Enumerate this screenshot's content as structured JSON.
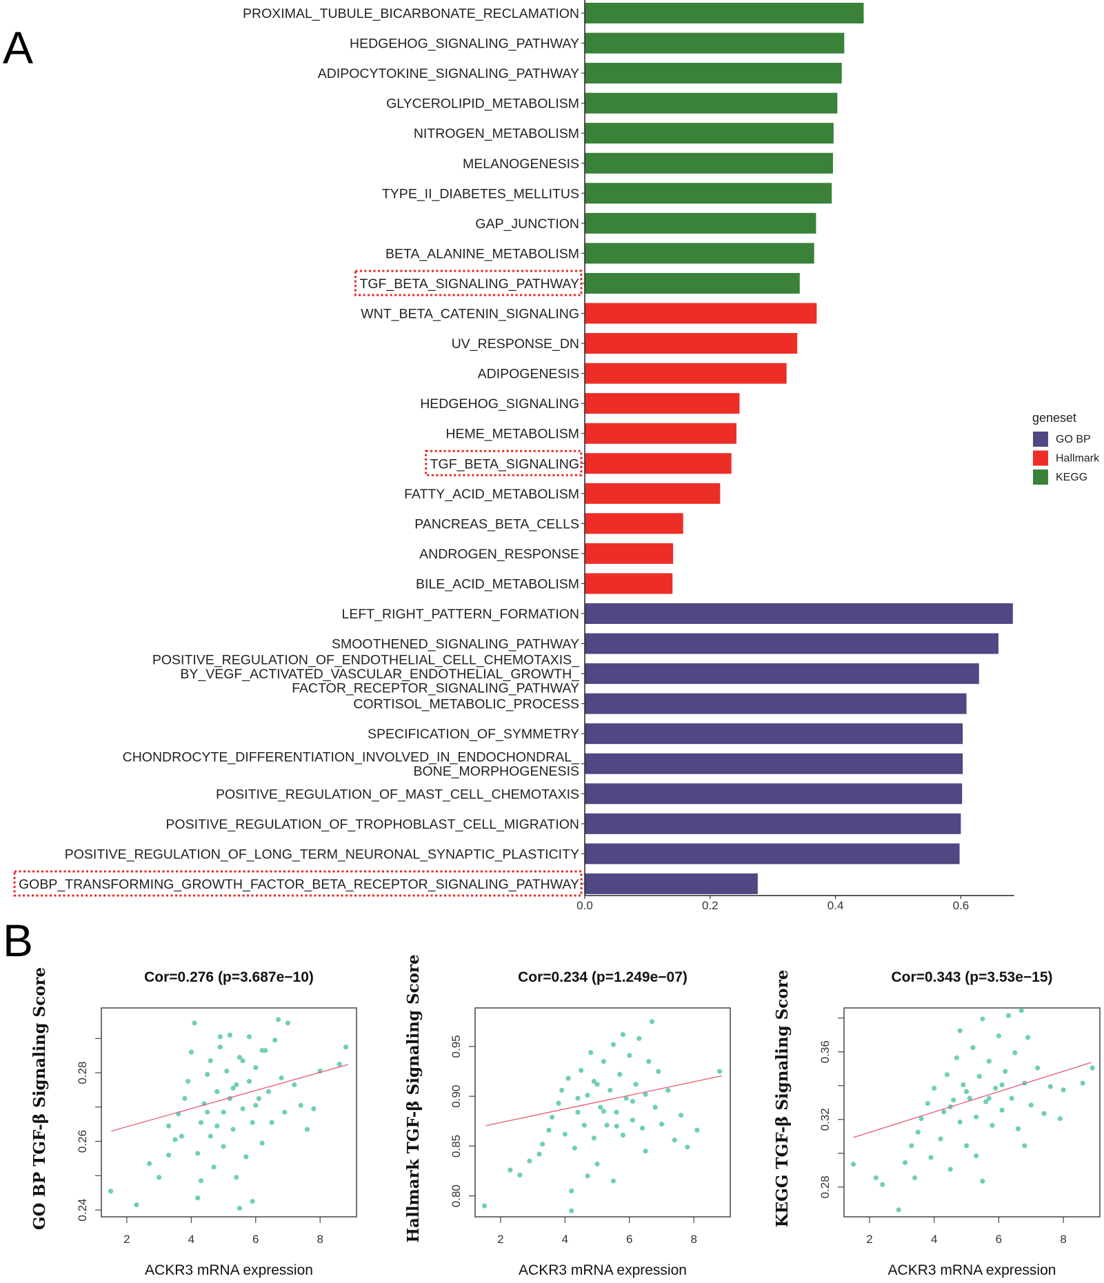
{
  "panels": {
    "a": "A",
    "b": "B"
  },
  "colors": {
    "GO BP": "#4f4882",
    "Hallmark": "#ec2e27",
    "KEGG": "#3a813a",
    "highlight": "#e8251f",
    "scatter": "#6fcfb6",
    "fit": "#e8647a"
  },
  "chart_data": [
    {
      "type": "bar",
      "orientation": "horizontal",
      "xlim": [
        0,
        0.685
      ],
      "xticks": [
        "0.0",
        "0.2",
        "0.4",
        "0.6"
      ],
      "xtick_values": [
        0,
        0.2,
        0.4,
        0.6
      ],
      "legend": {
        "title": "geneset",
        "position": "right",
        "entries": [
          "GO BP",
          "Hallmark",
          "KEGG"
        ]
      },
      "highlighted": [
        "TGF_BETA_SIGNALING_PATHWAY",
        "TGF_BETA_SIGNALING",
        "GOBP_TRANSFORMING_GROWTH_FACTOR_BETA_RECEPTOR_SIGNALING_PATHWAY"
      ],
      "bars": [
        {
          "label": [
            "PROXIMAL_TUBULE_BICARBONATE_RECLAMATION"
          ],
          "value": 0.445,
          "geneset": "KEGG"
        },
        {
          "label": [
            "HEDGEHOG_SIGNALING_PATHWAY"
          ],
          "value": 0.414,
          "geneset": "KEGG"
        },
        {
          "label": [
            "ADIPOCYTOKINE_SIGNALING_PATHWAY"
          ],
          "value": 0.41,
          "geneset": "KEGG"
        },
        {
          "label": [
            "GLYCEROLIPID_METABOLISM"
          ],
          "value": 0.403,
          "geneset": "KEGG"
        },
        {
          "label": [
            "NITROGEN_METABOLISM"
          ],
          "value": 0.397,
          "geneset": "KEGG"
        },
        {
          "label": [
            "MELANOGENESIS"
          ],
          "value": 0.396,
          "geneset": "KEGG"
        },
        {
          "label": [
            "TYPE_II_DIABETES_MELLITUS"
          ],
          "value": 0.394,
          "geneset": "KEGG"
        },
        {
          "label": [
            "GAP_JUNCTION"
          ],
          "value": 0.369,
          "geneset": "KEGG"
        },
        {
          "label": [
            "BETA_ALANINE_METABOLISM"
          ],
          "value": 0.366,
          "geneset": "KEGG"
        },
        {
          "label": [
            "TGF_BETA_SIGNALING_PATHWAY"
          ],
          "value": 0.343,
          "geneset": "KEGG",
          "highlight": true
        },
        {
          "label": [
            "WNT_BETA_CATENIN_SIGNALING"
          ],
          "value": 0.37,
          "geneset": "Hallmark"
        },
        {
          "label": [
            "UV_RESPONSE_DN"
          ],
          "value": 0.339,
          "geneset": "Hallmark"
        },
        {
          "label": [
            "ADIPOGENESIS"
          ],
          "value": 0.322,
          "geneset": "Hallmark"
        },
        {
          "label": [
            "HEDGEHOG_SIGNALING"
          ],
          "value": 0.247,
          "geneset": "Hallmark"
        },
        {
          "label": [
            "HEME_METABOLISM"
          ],
          "value": 0.242,
          "geneset": "Hallmark"
        },
        {
          "label": [
            "TGF_BETA_SIGNALING"
          ],
          "value": 0.234,
          "geneset": "Hallmark",
          "highlight": true
        },
        {
          "label": [
            "FATTY_ACID_METABOLISM"
          ],
          "value": 0.216,
          "geneset": "Hallmark"
        },
        {
          "label": [
            "PANCREAS_BETA_CELLS"
          ],
          "value": 0.157,
          "geneset": "Hallmark"
        },
        {
          "label": [
            "ANDROGEN_RESPONSE"
          ],
          "value": 0.141,
          "geneset": "Hallmark"
        },
        {
          "label": [
            "BILE_ACID_METABOLISM"
          ],
          "value": 0.14,
          "geneset": "Hallmark"
        },
        {
          "label": [
            "LEFT_RIGHT_PATTERN_FORMATION"
          ],
          "value": 0.683,
          "geneset": "GO BP"
        },
        {
          "label": [
            "SMOOTHENED_SIGNALING_PATHWAY"
          ],
          "value": 0.66,
          "geneset": "GO BP"
        },
        {
          "label": [
            "POSITIVE_REGULATION_OF_ENDOTHELIAL_CELL_CHEMOTAXIS_",
            "BY_VEGF_ACTIVATED_VASCULAR_ENDOTHELIAL_GROWTH_",
            "FACTOR_RECEPTOR_SIGNALING_PATHWAY"
          ],
          "value": 0.629,
          "geneset": "GO BP"
        },
        {
          "label": [
            "CORTISOL_METABOLIC_PROCESS"
          ],
          "value": 0.609,
          "geneset": "GO BP"
        },
        {
          "label": [
            "SPECIFICATION_OF_SYMMETRY"
          ],
          "value": 0.603,
          "geneset": "GO BP"
        },
        {
          "label": [
            "CHONDROCYTE_DIFFERENTIATION_INVOLVED_IN_ENDOCHONDRAL_",
            "BONE_MORPHOGENESIS"
          ],
          "value": 0.603,
          "geneset": "GO BP"
        },
        {
          "label": [
            "POSITIVE_REGULATION_OF_MAST_CELL_CHEMOTAXIS"
          ],
          "value": 0.602,
          "geneset": "GO BP"
        },
        {
          "label": [
            "POSITIVE_REGULATION_OF_TROPHOBLAST_CELL_MIGRATION"
          ],
          "value": 0.6,
          "geneset": "GO BP"
        },
        {
          "label": [
            "POSITIVE_REGULATION_OF_LONG_TERM_NEURONAL_SYNAPTIC_PLASTICITY"
          ],
          "value": 0.598,
          "geneset": "GO BP"
        },
        {
          "label": [
            "GOBP_TRANSFORMING_GROWTH_FACTOR_BETA_RECEPTOR_SIGNALING_PATHWAY"
          ],
          "value": 0.276,
          "geneset": "GO BP",
          "highlight": true
        }
      ]
    },
    {
      "type": "scatter",
      "title": "Cor=0.276 (p=3.687e−10)",
      "xlabel": "ACKR3 mRNA expression",
      "ylabel": "GO BP TGF-β Signaling Score",
      "xlim": [
        1.21,
        9.13
      ],
      "ylim": [
        0.238,
        0.2989
      ],
      "xticks": [
        2,
        4,
        6,
        8
      ],
      "xtick_labels": [
        "2",
        "4",
        "6",
        "8"
      ],
      "yticks": [
        0.24,
        0.25,
        0.26,
        0.27,
        0.28,
        0.29
      ],
      "ytick_labels": [
        "0.24",
        "",
        "0.26",
        "",
        "0.28",
        ""
      ],
      "fit": [
        [
          1.52,
          0.263
        ],
        [
          8.87,
          0.2824
        ]
      ],
      "points": [
        [
          1.5,
          0.2455
        ],
        [
          2.3,
          0.2415
        ],
        [
          2.7,
          0.2535
        ],
        [
          3.0,
          0.2495
        ],
        [
          3.3,
          0.256
        ],
        [
          3.5,
          0.2605
        ],
        [
          3.3,
          0.2645
        ],
        [
          3.6,
          0.268
        ],
        [
          3.8,
          0.2725
        ],
        [
          3.9,
          0.2775
        ],
        [
          4.0,
          0.286
        ],
        [
          4.1,
          0.2945
        ],
        [
          4.2,
          0.2565
        ],
        [
          4.2,
          0.2435
        ],
        [
          4.3,
          0.2655
        ],
        [
          4.4,
          0.271
        ],
        [
          4.5,
          0.2795
        ],
        [
          4.6,
          0.2835
        ],
        [
          4.6,
          0.2615
        ],
        [
          4.7,
          0.2525
        ],
        [
          4.8,
          0.2745
        ],
        [
          4.9,
          0.2875
        ],
        [
          5.0,
          0.2685
        ],
        [
          5.0,
          0.2585
        ],
        [
          5.1,
          0.2805
        ],
        [
          5.2,
          0.291
        ],
        [
          5.2,
          0.2725
        ],
        [
          5.3,
          0.2635
        ],
        [
          5.4,
          0.2495
        ],
        [
          5.4,
          0.2765
        ],
        [
          5.5,
          0.2845
        ],
        [
          5.5,
          0.2405
        ],
        [
          5.6,
          0.2695
        ],
        [
          5.7,
          0.2555
        ],
        [
          5.8,
          0.2775
        ],
        [
          5.8,
          0.2905
        ],
        [
          5.9,
          0.2655
        ],
        [
          6.0,
          0.2815
        ],
        [
          6.1,
          0.2725
        ],
        [
          6.2,
          0.2595
        ],
        [
          6.3,
          0.2865
        ],
        [
          6.4,
          0.2745
        ],
        [
          6.5,
          0.2655
        ],
        [
          6.6,
          0.2895
        ],
        [
          6.7,
          0.2955
        ],
        [
          6.8,
          0.2785
        ],
        [
          6.9,
          0.2685
        ],
        [
          7.0,
          0.2945
        ],
        [
          7.2,
          0.2765
        ],
        [
          7.4,
          0.2705
        ],
        [
          7.6,
          0.2635
        ],
        [
          8.0,
          0.2805
        ],
        [
          8.6,
          0.2825
        ],
        [
          8.8,
          0.2875
        ],
        [
          7.8,
          0.2695
        ],
        [
          4.3,
          0.2485
        ],
        [
          5.9,
          0.2425
        ],
        [
          4.9,
          0.2905
        ],
        [
          3.7,
          0.2615
        ],
        [
          6.2,
          0.2865
        ],
        [
          4.5,
          0.2685
        ],
        [
          5.3,
          0.2755
        ],
        [
          6.0,
          0.2705
        ],
        [
          4.8,
          0.2645
        ],
        [
          5.6,
          0.2835
        ]
      ]
    },
    {
      "type": "scatter",
      "title": "Cor=0.234 (p=1.249e−07)",
      "xlabel": "ACKR3 mRNA expression",
      "ylabel": "Hallmark TGF-β Signaling Score",
      "xlim": [
        1.21,
        9.13
      ],
      "ylim": [
        0.779,
        0.9887
      ],
      "xticks": [
        2,
        4,
        6,
        8
      ],
      "xtick_labels": [
        "2",
        "4",
        "6",
        "8"
      ],
      "yticks": [
        0.8,
        0.85,
        0.9,
        0.95
      ],
      "ytick_labels": [
        "0.80",
        "0.85",
        "0.90",
        "0.95"
      ],
      "fit": [
        [
          1.54,
          0.8705
        ],
        [
          8.87,
          0.9205
        ]
      ],
      "points": [
        [
          1.5,
          0.79
        ],
        [
          2.3,
          0.826
        ],
        [
          2.6,
          0.821
        ],
        [
          2.9,
          0.835
        ],
        [
          3.3,
          0.852
        ],
        [
          3.5,
          0.866
        ],
        [
          3.6,
          0.879
        ],
        [
          3.8,
          0.893
        ],
        [
          3.9,
          0.906
        ],
        [
          4.0,
          0.862
        ],
        [
          4.1,
          0.918
        ],
        [
          4.2,
          0.805
        ],
        [
          4.2,
          0.785
        ],
        [
          4.3,
          0.848
        ],
        [
          4.4,
          0.884
        ],
        [
          4.5,
          0.926
        ],
        [
          4.6,
          0.871
        ],
        [
          4.7,
          0.901
        ],
        [
          4.8,
          0.944
        ],
        [
          4.9,
          0.858
        ],
        [
          5.0,
          0.912
        ],
        [
          5.0,
          0.832
        ],
        [
          5.1,
          0.889
        ],
        [
          5.2,
          0.935
        ],
        [
          5.3,
          0.871
        ],
        [
          5.4,
          0.906
        ],
        [
          5.5,
          0.952
        ],
        [
          5.5,
          0.815
        ],
        [
          5.6,
          0.884
        ],
        [
          5.7,
          0.922
        ],
        [
          5.8,
          0.861
        ],
        [
          5.9,
          0.898
        ],
        [
          6.0,
          0.941
        ],
        [
          6.1,
          0.876
        ],
        [
          6.2,
          0.912
        ],
        [
          6.3,
          0.958
        ],
        [
          6.4,
          0.868
        ],
        [
          6.5,
          0.902
        ],
        [
          6.6,
          0.935
        ],
        [
          6.7,
          0.975
        ],
        [
          6.8,
          0.889
        ],
        [
          6.9,
          0.925
        ],
        [
          7.0,
          0.872
        ],
        [
          7.2,
          0.906
        ],
        [
          7.4,
          0.856
        ],
        [
          7.6,
          0.881
        ],
        [
          7.8,
          0.849
        ],
        [
          8.1,
          0.866
        ],
        [
          8.8,
          0.925
        ],
        [
          4.7,
          0.82
        ],
        [
          3.2,
          0.842
        ],
        [
          5.8,
          0.962
        ],
        [
          6.5,
          0.845
        ],
        [
          4.4,
          0.898
        ],
        [
          5.2,
          0.885
        ],
        [
          4.9,
          0.915
        ],
        [
          6.1,
          0.895
        ],
        [
          5.6,
          0.87
        ]
      ]
    },
    {
      "type": "scatter",
      "title": "Cor=0.343 (p=3.53e−15)",
      "xlabel": "ACKR3 mRNA expression",
      "ylabel": "KEGG TGF-β Signaling Score",
      "xlim": [
        1.21,
        9.13
      ],
      "ylim": [
        0.2624,
        0.386
      ],
      "xticks": [
        2,
        4,
        6,
        8
      ],
      "xtick_labels": [
        "2",
        "4",
        "6",
        "8"
      ],
      "yticks": [
        0.28,
        0.3,
        0.32,
        0.34,
        0.36,
        0.38
      ],
      "ytick_labels": [
        "0.28",
        "",
        "0.32",
        "",
        "0.36",
        ""
      ],
      "fit": [
        [
          1.49,
          0.3093
        ],
        [
          8.86,
          0.3537
        ]
      ],
      "points": [
        [
          1.5,
          0.2935
        ],
        [
          2.2,
          0.2855
        ],
        [
          2.4,
          0.2815
        ],
        [
          2.9,
          0.2665
        ],
        [
          3.1,
          0.2945
        ],
        [
          3.3,
          0.3045
        ],
        [
          3.5,
          0.3125
        ],
        [
          3.6,
          0.3205
        ],
        [
          3.8,
          0.3295
        ],
        [
          3.9,
          0.2975
        ],
        [
          4.0,
          0.3385
        ],
        [
          4.2,
          0.3085
        ],
        [
          4.3,
          0.3245
        ],
        [
          4.4,
          0.3465
        ],
        [
          4.5,
          0.2905
        ],
        [
          4.6,
          0.3315
        ],
        [
          4.7,
          0.3565
        ],
        [
          4.8,
          0.3185
        ],
        [
          4.9,
          0.3405
        ],
        [
          5.0,
          0.3045
        ],
        [
          5.1,
          0.3325
        ],
        [
          5.2,
          0.3625
        ],
        [
          5.3,
          0.3215
        ],
        [
          5.4,
          0.3455
        ],
        [
          5.5,
          0.3795
        ],
        [
          5.5,
          0.2835
        ],
        [
          5.6,
          0.3305
        ],
        [
          5.7,
          0.3545
        ],
        [
          5.8,
          0.3165
        ],
        [
          5.9,
          0.3385
        ],
        [
          6.0,
          0.3695
        ],
        [
          6.1,
          0.3255
        ],
        [
          6.2,
          0.3485
        ],
        [
          6.3,
          0.3815
        ],
        [
          6.4,
          0.3325
        ],
        [
          6.5,
          0.3595
        ],
        [
          6.6,
          0.3145
        ],
        [
          6.7,
          0.3845
        ],
        [
          6.8,
          0.3415
        ],
        [
          6.9,
          0.3685
        ],
        [
          7.0,
          0.3285
        ],
        [
          7.2,
          0.3505
        ],
        [
          7.4,
          0.3235
        ],
        [
          7.6,
          0.3395
        ],
        [
          7.9,
          0.3205
        ],
        [
          8.0,
          0.3375
        ],
        [
          8.6,
          0.3415
        ],
        [
          8.9,
          0.3505
        ],
        [
          5.3,
          0.2985
        ],
        [
          3.4,
          0.2855
        ],
        [
          4.8,
          0.3725
        ],
        [
          6.8,
          0.3045
        ],
        [
          5.0,
          0.3365
        ],
        [
          5.7,
          0.3325
        ],
        [
          6.1,
          0.3405
        ],
        [
          4.5,
          0.3275
        ]
      ]
    }
  ]
}
